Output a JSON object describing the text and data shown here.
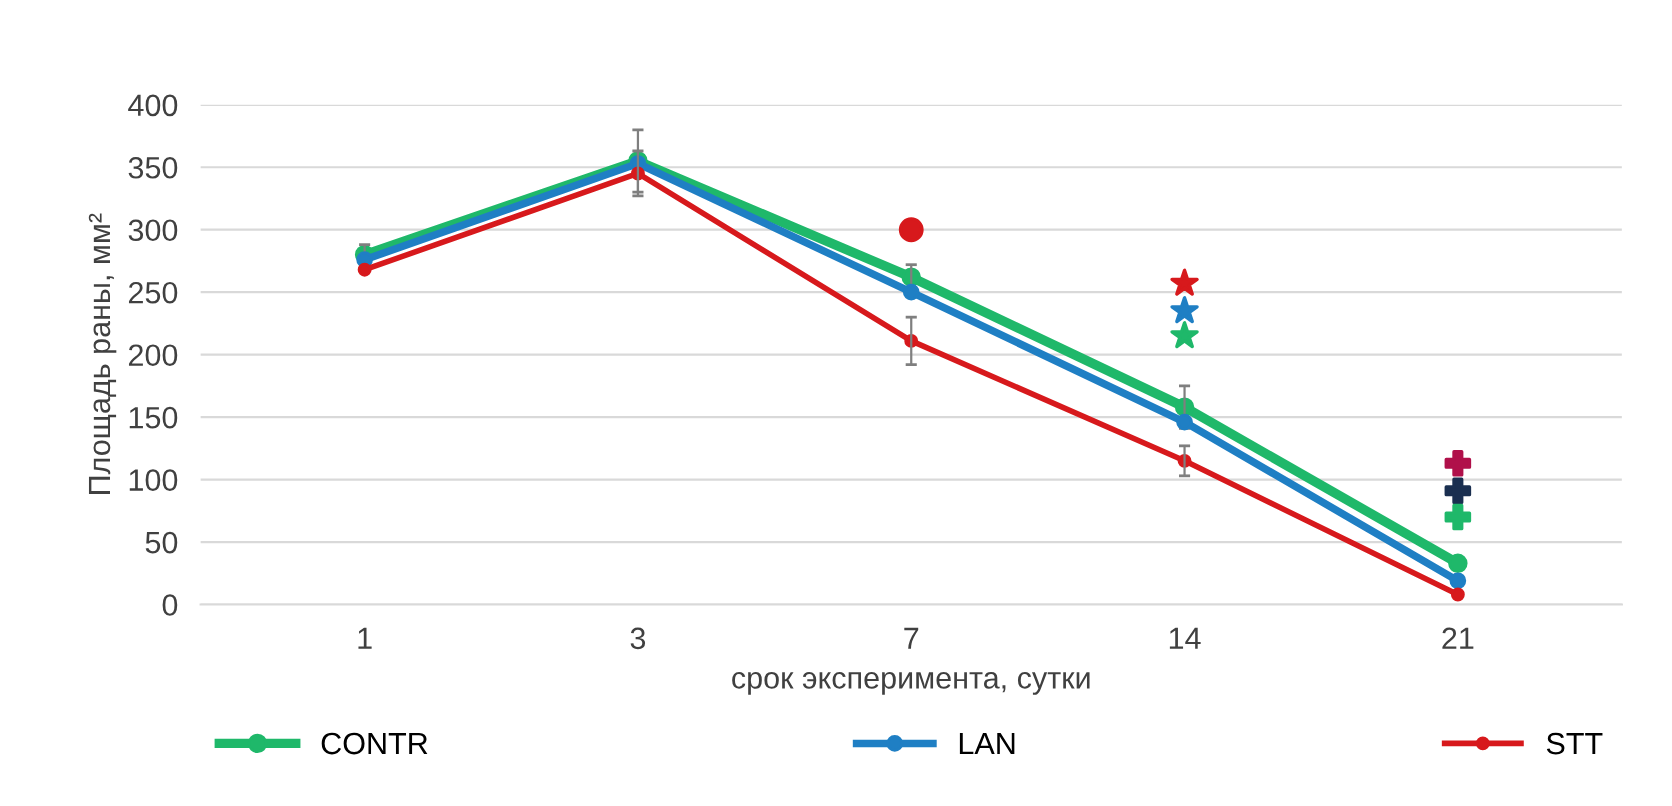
{
  "chart_data": {
    "type": "line",
    "xlabel": "срок эксперимента, сутки",
    "ylabel": "Площадь раны, мм²",
    "categories": [
      "1",
      "3",
      "7",
      "14",
      "21"
    ],
    "ylim": [
      0,
      400
    ],
    "yticks": [
      0,
      50,
      100,
      150,
      200,
      250,
      300,
      350,
      400
    ],
    "grid": "y",
    "legend": "bottom",
    "marker": "circle",
    "line_style": "solid",
    "series": [
      {
        "name": "CONTR",
        "color": "#1fb86a",
        "values": [
          280,
          355,
          262,
          158,
          33
        ],
        "errors": [
          8,
          25,
          10,
          17,
          null
        ]
      },
      {
        "name": "LAN",
        "color": "#1f7fc4",
        "values": [
          276,
          353,
          250,
          146,
          19
        ]
      },
      {
        "name": "STT",
        "color": "#d7191c",
        "values": [
          268,
          345,
          211,
          115,
          8
        ],
        "errors": [
          null,
          18,
          19,
          12,
          null
        ]
      },
      {
        "type": "scatter",
        "marker": "circle",
        "color": "#d7191c",
        "x": [
          "7"
        ],
        "values": [
          300
        ]
      },
      {
        "type": "scatter",
        "marker": "star",
        "color": "#d7191c",
        "x": [
          "14"
        ],
        "values": [
          257
        ]
      },
      {
        "type": "scatter",
        "marker": "star",
        "color": "#1f7fc4",
        "x": [
          "14"
        ],
        "values": [
          235
        ]
      },
      {
        "type": "scatter",
        "marker": "star",
        "color": "#1fb86a",
        "x": [
          "14"
        ],
        "values": [
          215
        ]
      },
      {
        "type": "scatter",
        "marker": "cross",
        "color": "#b0104a",
        "x": [
          "21"
        ],
        "values": [
          113
        ]
      },
      {
        "type": "scatter",
        "marker": "cross",
        "color": "#1a2f50",
        "x": [
          "21"
        ],
        "values": [
          91
        ]
      },
      {
        "type": "scatter",
        "marker": "cross",
        "color": "#1fb86a",
        "x": [
          "21"
        ],
        "values": [
          70
        ]
      }
    ]
  }
}
